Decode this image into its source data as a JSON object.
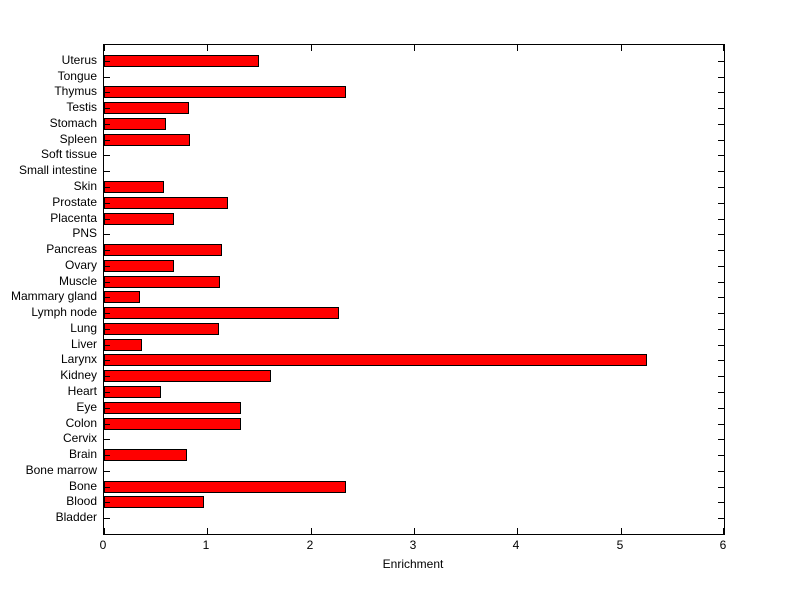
{
  "chart_data": {
    "type": "bar",
    "orientation": "horizontal",
    "title": "",
    "xlabel": "Enrichment",
    "ylabel": "",
    "xlim": [
      0,
      6
    ],
    "x_ticks": [
      0,
      1,
      2,
      3,
      4,
      5,
      6
    ],
    "grid": false,
    "legend": null,
    "bar_color": "#FF0000",
    "bar_edge_color": "#000000",
    "axis_color": "#000000",
    "background_color": "#FFFFFF",
    "categories": [
      "Uterus",
      "Tongue",
      "Thymus",
      "Testis",
      "Stomach",
      "Spleen",
      "Soft tissue",
      "Small intestine",
      "Skin",
      "Prostate",
      "Placenta",
      "PNS",
      "Pancreas",
      "Ovary",
      "Muscle",
      "Mammary gland",
      "Lymph node",
      "Lung",
      "Liver",
      "Larynx",
      "Kidney",
      "Heart",
      "Eye",
      "Colon",
      "Cervix",
      "Brain",
      "Bone marrow",
      "Bone",
      "Blood",
      "Bladder"
    ],
    "values": [
      1.5,
      0,
      2.34,
      0.82,
      0.6,
      0.83,
      0,
      0,
      0.58,
      1.2,
      0.68,
      0,
      1.14,
      0.68,
      1.12,
      0.35,
      2.27,
      1.11,
      0.37,
      5.25,
      1.62,
      0.55,
      1.33,
      1.33,
      0,
      0.8,
      0,
      2.34,
      0.97,
      0
    ]
  }
}
